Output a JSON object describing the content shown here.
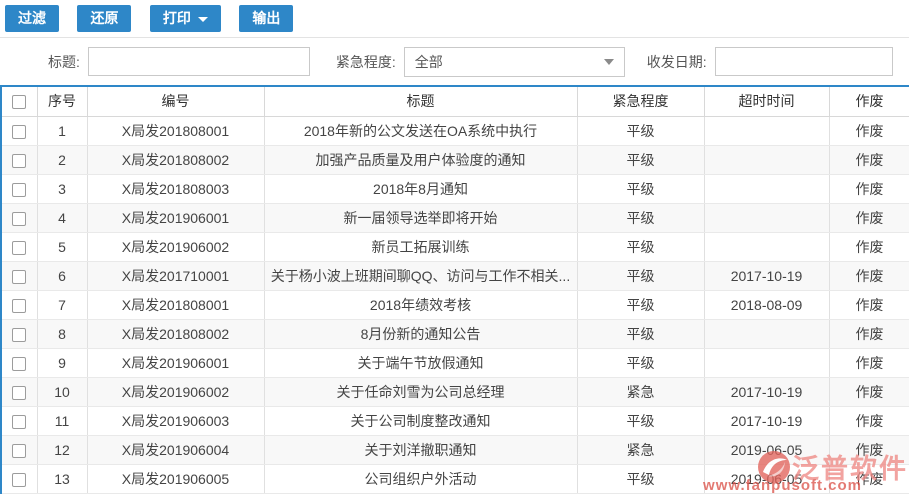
{
  "colors": {
    "accent": "#2e87c8",
    "watermark_brand": "#ef8a86",
    "watermark_url": "#dc554d"
  },
  "toolbar": {
    "filter_label": "过滤",
    "restore_label": "还原",
    "print_label": "打印",
    "output_label": "输出"
  },
  "filters": {
    "title_label": "标题:",
    "title_value": "",
    "urgency_label": "紧急程度:",
    "urgency_value": "全部",
    "date_label": "收发日期:",
    "date_value": ""
  },
  "table": {
    "headers": [
      "序号",
      "编号",
      "标题",
      "紧急程度",
      "超时时间",
      "作废"
    ],
    "rows": [
      {
        "no": "1",
        "code": "X局发201808001",
        "title": "2018年新的公文发送在OA系统中执行",
        "urgency": "平级",
        "timeout": "",
        "action": "作废"
      },
      {
        "no": "2",
        "code": "X局发201808002",
        "title": "加强产品质量及用户体验度的通知",
        "urgency": "平级",
        "timeout": "",
        "action": "作废"
      },
      {
        "no": "3",
        "code": "X局发201808003",
        "title": "2018年8月通知",
        "urgency": "平级",
        "timeout": "",
        "action": "作废"
      },
      {
        "no": "4",
        "code": "X局发201906001",
        "title": "新一届领导选举即将开始",
        "urgency": "平级",
        "timeout": "",
        "action": "作废"
      },
      {
        "no": "5",
        "code": "X局发201906002",
        "title": "新员工拓展训练",
        "urgency": "平级",
        "timeout": "",
        "action": "作废"
      },
      {
        "no": "6",
        "code": "X局发201710001",
        "title": "关于杨小波上班期间聊QQ、访问与工作不相关...",
        "urgency": "平级",
        "timeout": "2017-10-19",
        "action": "作废"
      },
      {
        "no": "7",
        "code": "X局发201808001",
        "title": "2018年绩效考核",
        "urgency": "平级",
        "timeout": "2018-08-09",
        "action": "作废"
      },
      {
        "no": "8",
        "code": "X局发201808002",
        "title": "8月份新的通知公告",
        "urgency": "平级",
        "timeout": "",
        "action": "作废"
      },
      {
        "no": "9",
        "code": "X局发201906001",
        "title": "关于端午节放假通知",
        "urgency": "平级",
        "timeout": "",
        "action": "作废"
      },
      {
        "no": "10",
        "code": "X局发201906002",
        "title": "关于任命刘雪为公司总经理",
        "urgency": "紧急",
        "timeout": "2017-10-19",
        "action": "作废"
      },
      {
        "no": "11",
        "code": "X局发201906003",
        "title": "关于公司制度整改通知",
        "urgency": "平级",
        "timeout": "2017-10-19",
        "action": "作废"
      },
      {
        "no": "12",
        "code": "X局发201906004",
        "title": "关于刘洋撤职通知",
        "urgency": "紧急",
        "timeout": "2019-06-05",
        "action": "作废"
      },
      {
        "no": "13",
        "code": "X局发201906005",
        "title": "公司组织户外活动",
        "urgency": "平级",
        "timeout": "2019-06-05",
        "action": "作废"
      }
    ]
  },
  "watermark": {
    "brand": "泛普软件",
    "url": "www.fanpusoft.com"
  }
}
